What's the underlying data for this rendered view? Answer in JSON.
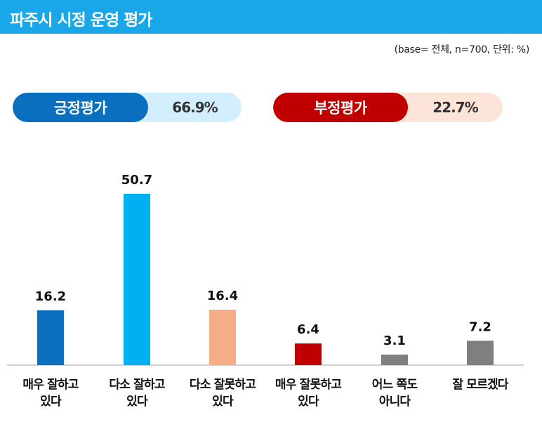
{
  "header": {
    "title": "파주시 시정 운영 평가"
  },
  "base_note": "(base= 전체, n=700, 단위: %)",
  "summary": {
    "positive": {
      "label": "긍정평가",
      "value": "66.9%"
    },
    "negative": {
      "label": "부정평가",
      "value": "22.7%"
    }
  },
  "colors": {
    "header": "#1aa7ea",
    "positive_dark": "#0a6fbe",
    "positive_light": "#d3eefc",
    "negative_dark": "#c00000",
    "negative_light": "#fde4d8"
  },
  "chart_data": {
    "type": "bar",
    "categories": [
      [
        "매우 잘하고",
        "있다"
      ],
      [
        "다소 잘하고",
        "있다"
      ],
      [
        "다소 잘못하고",
        "있다"
      ],
      [
        "매우 잘못하고",
        "있다"
      ],
      [
        "어느 쪽도",
        "아니다"
      ],
      [
        "잘 모르겠다"
      ]
    ],
    "values": [
      16.2,
      50.7,
      16.4,
      6.4,
      3.1,
      7.2
    ],
    "value_labels": [
      "16.2",
      "50.7",
      "16.4",
      "6.4",
      "3.1",
      "7.2"
    ],
    "bar_colors": [
      "#0a6fbe",
      "#00b0f0",
      "#f4ad87",
      "#c00000",
      "#7f7f7f",
      "#7f7f7f"
    ],
    "title": "",
    "xlabel": "",
    "ylabel": "",
    "ylim": [
      0,
      55
    ],
    "grid": false
  }
}
